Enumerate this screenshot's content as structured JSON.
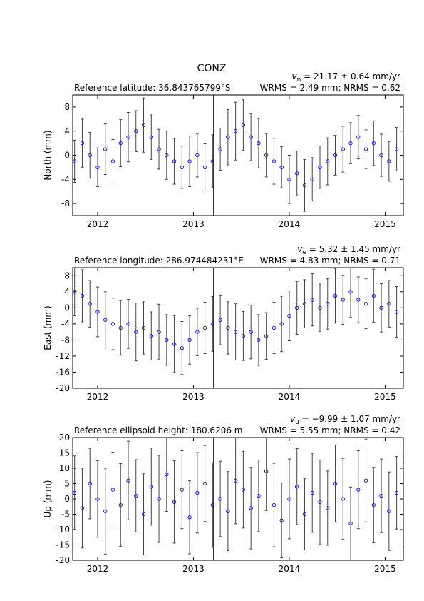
{
  "title": "CONZ",
  "chart_data": [
    {
      "type": "scatter",
      "y_label": "North (mm)",
      "reference": "Reference latitude: 36.843765799°S",
      "velocity": {
        "symbol": "v",
        "subscript": "n",
        "text": " = 21.17 ± 0.64 mm/yr"
      },
      "stats": "WRMS = 2.49 mm; NRMS = 0.62",
      "color": "#1a1acc",
      "error_color": "#444444",
      "x": [
        2011.76,
        2011.84,
        2011.92,
        2012.0,
        2012.08,
        2012.16,
        2012.24,
        2012.32,
        2012.4,
        2012.48,
        2012.56,
        2012.64,
        2012.72,
        2012.8,
        2012.88,
        2012.96,
        2013.04,
        2013.12,
        2013.2,
        2013.28,
        2013.36,
        2013.44,
        2013.52,
        2013.6,
        2013.68,
        2013.76,
        2013.84,
        2013.92,
        2014.0,
        2014.08,
        2014.16,
        2014.24,
        2014.32,
        2014.4,
        2014.48,
        2014.56,
        2014.64,
        2014.72,
        2014.8,
        2014.88,
        2014.96,
        2015.04,
        2015.12
      ],
      "values": [
        -1,
        2,
        0,
        -2,
        1,
        -1,
        2,
        3,
        4,
        5,
        3,
        1,
        0,
        -1,
        -2,
        -1,
        0,
        -2,
        -1,
        1,
        3,
        4,
        5,
        3,
        2,
        0,
        -1,
        -2,
        -4,
        -3,
        -5,
        -4,
        -2,
        -1,
        0,
        1,
        2,
        3,
        1,
        2,
        0,
        -1,
        1
      ],
      "errors": [
        3.5,
        4,
        3.8,
        3.2,
        4.2,
        3.6,
        3.9,
        4.1,
        3.4,
        4.5,
        3.7,
        3.3,
        4,
        3.8,
        3.5,
        4.2,
        3.6,
        3.9,
        4.4,
        3.5,
        4.6,
        4.8,
        4.2,
        3.9,
        4.1,
        3.6,
        3.8,
        3.4,
        4,
        3.7,
        4.3,
        3.6,
        3.5,
        3.9,
        3.3,
        3.8,
        3.4,
        3.6,
        3.2,
        3.7,
        3.5,
        3.3,
        3.6
      ],
      "breaks": [
        2013.21
      ],
      "xlim": [
        2011.74,
        2015.19
      ],
      "xticks": [
        2012,
        2013,
        2014,
        2015
      ],
      "ylim": [
        -10,
        10
      ],
      "yticks": [
        -8,
        -4,
        0,
        4,
        8
      ]
    },
    {
      "type": "scatter",
      "y_label": "East (mm)",
      "reference": "Reference longitude: 286.974484231°E",
      "velocity": {
        "symbol": "v",
        "subscript": "e",
        "text": " = 5.32 ± 1.45 mm/yr"
      },
      "stats": "WRMS = 4.83 mm; NRMS = 0.71",
      "color": "#1a1acc",
      "error_color": "#444444",
      "x": [
        2011.76,
        2011.84,
        2011.92,
        2012.0,
        2012.08,
        2012.16,
        2012.24,
        2012.32,
        2012.4,
        2012.48,
        2012.56,
        2012.64,
        2012.72,
        2012.8,
        2012.88,
        2012.96,
        2013.04,
        2013.12,
        2013.2,
        2013.28,
        2013.36,
        2013.44,
        2013.52,
        2013.6,
        2013.68,
        2013.76,
        2013.84,
        2013.92,
        2014.0,
        2014.08,
        2014.16,
        2014.24,
        2014.32,
        2014.4,
        2014.48,
        2014.56,
        2014.64,
        2014.72,
        2014.8,
        2014.88,
        2014.96,
        2015.04,
        2015.12
      ],
      "values": [
        4,
        3,
        1,
        -1,
        -3,
        -4,
        -5,
        -4,
        -6,
        -5,
        -7,
        -6,
        -8,
        -9,
        -10,
        -8,
        -6,
        -5,
        -4,
        -3,
        -5,
        -6,
        -7,
        -6,
        -8,
        -7,
        -5,
        -4,
        -2,
        0,
        1,
        2,
        0,
        1,
        3,
        2,
        4,
        2,
        1,
        3,
        0,
        1,
        -1
      ],
      "errors": [
        6,
        6.5,
        5.8,
        6.2,
        7,
        6.4,
        6.8,
        6.1,
        7.2,
        6.5,
        6,
        6.9,
        6.3,
        7.1,
        6.6,
        6,
        5.9,
        6.4,
        6.8,
        6.2,
        6.5,
        7,
        6.1,
        6.7,
        6.3,
        5.8,
        6.4,
        6.9,
        6.2,
        6.6,
        6,
        6.5,
        5.9,
        6.3,
        6.8,
        6.1,
        6.4,
        5.7,
        6.2,
        6.6,
        6,
        5.8,
        6.3
      ],
      "breaks": [
        2013.21
      ],
      "xlim": [
        2011.74,
        2015.19
      ],
      "xticks": [
        2012,
        2013,
        2014,
        2015
      ],
      "ylim": [
        -20,
        10
      ],
      "yticks": [
        -20,
        -16,
        -12,
        -8,
        -4,
        0,
        4,
        8
      ]
    },
    {
      "type": "scatter",
      "y_label": "Up (mm)",
      "reference": "Reference ellipsoid height: 180.6206 m",
      "velocity": {
        "symbol": "v",
        "subscript": "u",
        "text": " = −9.99 ± 1.07 mm/yr"
      },
      "stats": "WRMS = 5.55 mm; NRMS = 0.42",
      "color": "#1a1acc",
      "error_color": "#444444",
      "x": [
        2011.76,
        2011.84,
        2011.92,
        2012.0,
        2012.08,
        2012.16,
        2012.24,
        2012.32,
        2012.4,
        2012.48,
        2012.56,
        2012.64,
        2012.72,
        2012.8,
        2012.88,
        2012.96,
        2013.04,
        2013.12,
        2013.2,
        2013.28,
        2013.36,
        2013.44,
        2013.52,
        2013.6,
        2013.68,
        2013.76,
        2013.84,
        2013.92,
        2014.0,
        2014.08,
        2014.16,
        2014.24,
        2014.32,
        2014.4,
        2014.48,
        2014.56,
        2014.64,
        2014.72,
        2014.8,
        2014.88,
        2014.96,
        2015.04,
        2015.12
      ],
      "values": [
        2,
        -3,
        5,
        0,
        -4,
        3,
        -2,
        6,
        1,
        -5,
        4,
        0,
        8,
        -1,
        3,
        -6,
        2,
        5,
        -2,
        0,
        -4,
        6,
        3,
        -3,
        1,
        9,
        -2,
        -7,
        0,
        4,
        -5,
        2,
        -1,
        -3,
        5,
        0,
        -8,
        3,
        6,
        -2,
        1,
        -4,
        2
      ],
      "errors": [
        12,
        13,
        11.5,
        12.5,
        14,
        12.2,
        13.5,
        12.8,
        11.8,
        13.2,
        12.6,
        14.2,
        12.1,
        13.4,
        12.7,
        11.9,
        13.1,
        12.4,
        13.8,
        12.3,
        12.9,
        14.1,
        12.5,
        13.3,
        11.7,
        12.8,
        13.6,
        12.2,
        13,
        12.4,
        11.6,
        12.9,
        13.7,
        12.1,
        12.6,
        13.2,
        11.9,
        12.7,
        13.5,
        12.3,
        12,
        12.8,
        11.8
      ],
      "breaks": [
        2013.21
      ],
      "xlim": [
        2011.74,
        2015.19
      ],
      "xticks": [
        2012,
        2013,
        2014,
        2015
      ],
      "ylim": [
        -20,
        20
      ],
      "yticks": [
        -20,
        -15,
        -10,
        -5,
        0,
        5,
        10,
        15,
        20
      ]
    }
  ]
}
